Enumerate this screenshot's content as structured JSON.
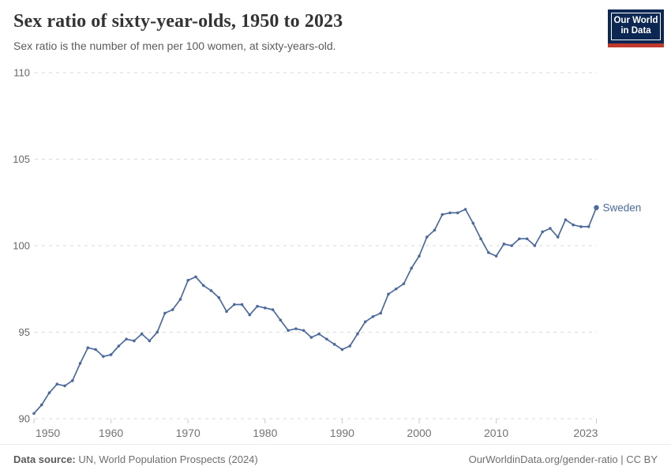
{
  "header": {
    "title": "Sex ratio of sixty-year-olds, 1950 to 2023",
    "subtitle": "Sex ratio is the number of men per 100 women, at sixty-years-old.",
    "logo_line1": "Our World",
    "logo_line2": "in Data"
  },
  "chart_data": {
    "type": "line",
    "title": "Sex ratio of sixty-year-olds, 1950 to 2023",
    "xlabel": "",
    "ylabel": "",
    "xlim": [
      1950,
      2023
    ],
    "ylim": [
      90,
      110
    ],
    "grid": "horizontal-dashed",
    "legend_position": "end-of-line-label",
    "x_ticks": [
      1950,
      1960,
      1970,
      1980,
      1990,
      2000,
      2010,
      2023
    ],
    "y_ticks": [
      90,
      95,
      100,
      105,
      110
    ],
    "series": [
      {
        "name": "Sweden",
        "color": "#4c6a9c",
        "years": [
          1950,
          1951,
          1952,
          1953,
          1954,
          1955,
          1956,
          1957,
          1958,
          1959,
          1960,
          1961,
          1962,
          1963,
          1964,
          1965,
          1966,
          1967,
          1968,
          1969,
          1970,
          1971,
          1972,
          1973,
          1974,
          1975,
          1976,
          1977,
          1978,
          1979,
          1980,
          1981,
          1982,
          1983,
          1984,
          1985,
          1986,
          1987,
          1988,
          1989,
          1990,
          1991,
          1992,
          1993,
          1994,
          1995,
          1996,
          1997,
          1998,
          1999,
          2000,
          2001,
          2002,
          2003,
          2004,
          2005,
          2006,
          2007,
          2008,
          2009,
          2010,
          2011,
          2012,
          2013,
          2014,
          2015,
          2016,
          2017,
          2018,
          2019,
          2020,
          2021,
          2022,
          2023
        ],
        "values": [
          90.3,
          90.8,
          91.5,
          92.0,
          91.9,
          92.2,
          93.2,
          94.1,
          94.0,
          93.6,
          93.7,
          94.2,
          94.6,
          94.5,
          94.9,
          94.5,
          95.0,
          96.1,
          96.3,
          96.9,
          98.0,
          98.2,
          97.7,
          97.4,
          97.0,
          96.2,
          96.6,
          96.6,
          96.0,
          96.5,
          96.4,
          96.3,
          95.7,
          95.1,
          95.2,
          95.1,
          94.7,
          94.9,
          94.6,
          94.3,
          94.0,
          94.2,
          94.9,
          95.6,
          95.9,
          96.1,
          97.2,
          97.5,
          97.8,
          98.7,
          99.4,
          100.5,
          100.9,
          101.8,
          101.9,
          101.9,
          102.1,
          101.3,
          100.4,
          99.6,
          99.4,
          100.1,
          100.0,
          100.4,
          100.4,
          100.0,
          100.8,
          101.0,
          100.5,
          101.5,
          101.2,
          101.1,
          101.1,
          102.2
        ]
      }
    ]
  },
  "footer": {
    "source_label": "Data source:",
    "source_value": " UN, World Population Prospects (2024)",
    "credit": "OurWorldinData.org/gender-ratio | CC BY"
  },
  "colors": {
    "line": "#4c6a9c",
    "logo_navy": "#0c2852",
    "logo_red": "#c0392b",
    "grid": "#d9d9d9",
    "title_text": "#333333",
    "muted_text": "#5b5b5b"
  }
}
